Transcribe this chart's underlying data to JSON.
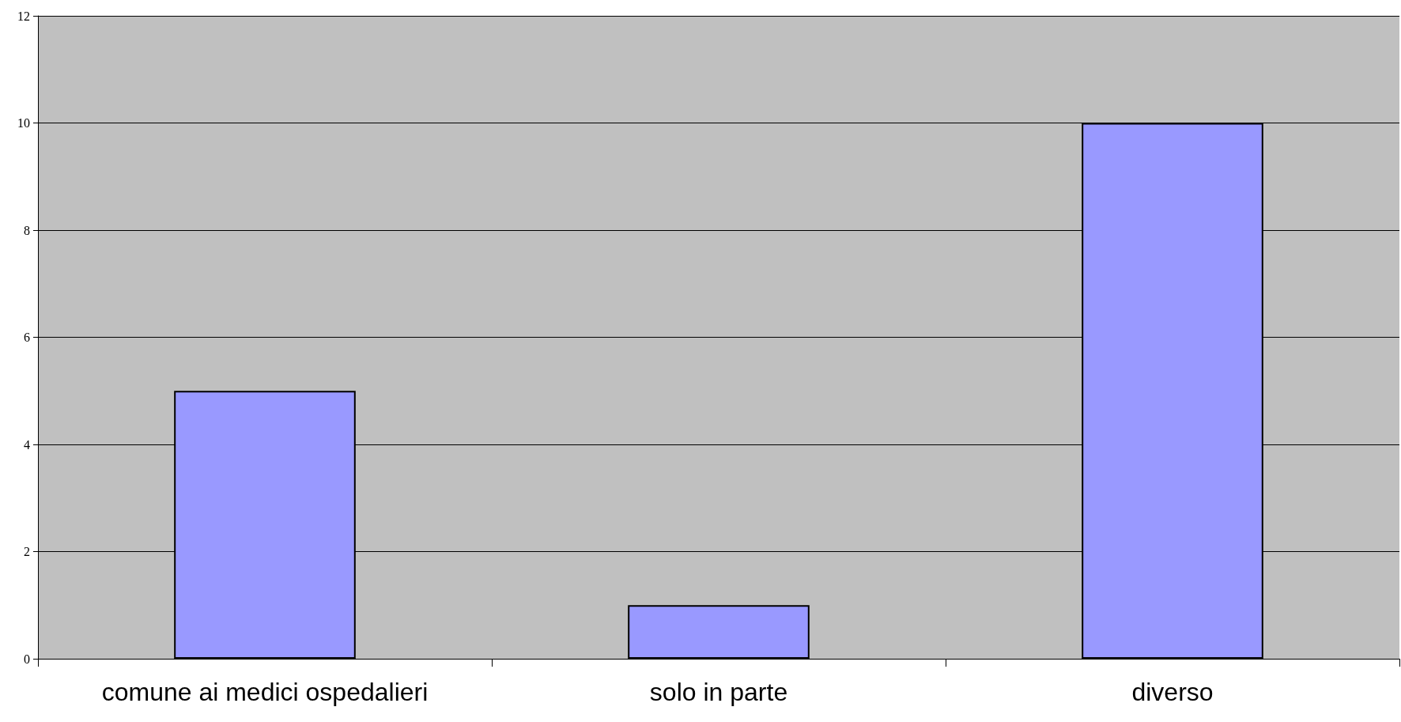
{
  "chart_data": {
    "type": "bar",
    "categories": [
      "comune ai medici ospedalieri",
      "solo in parte",
      "diverso"
    ],
    "values": [
      5,
      1,
      10
    ],
    "color": "#9999ff",
    "ylim": [
      0,
      12
    ],
    "yticks": [
      0,
      2,
      4,
      6,
      8,
      10,
      12
    ],
    "grid": "y"
  }
}
